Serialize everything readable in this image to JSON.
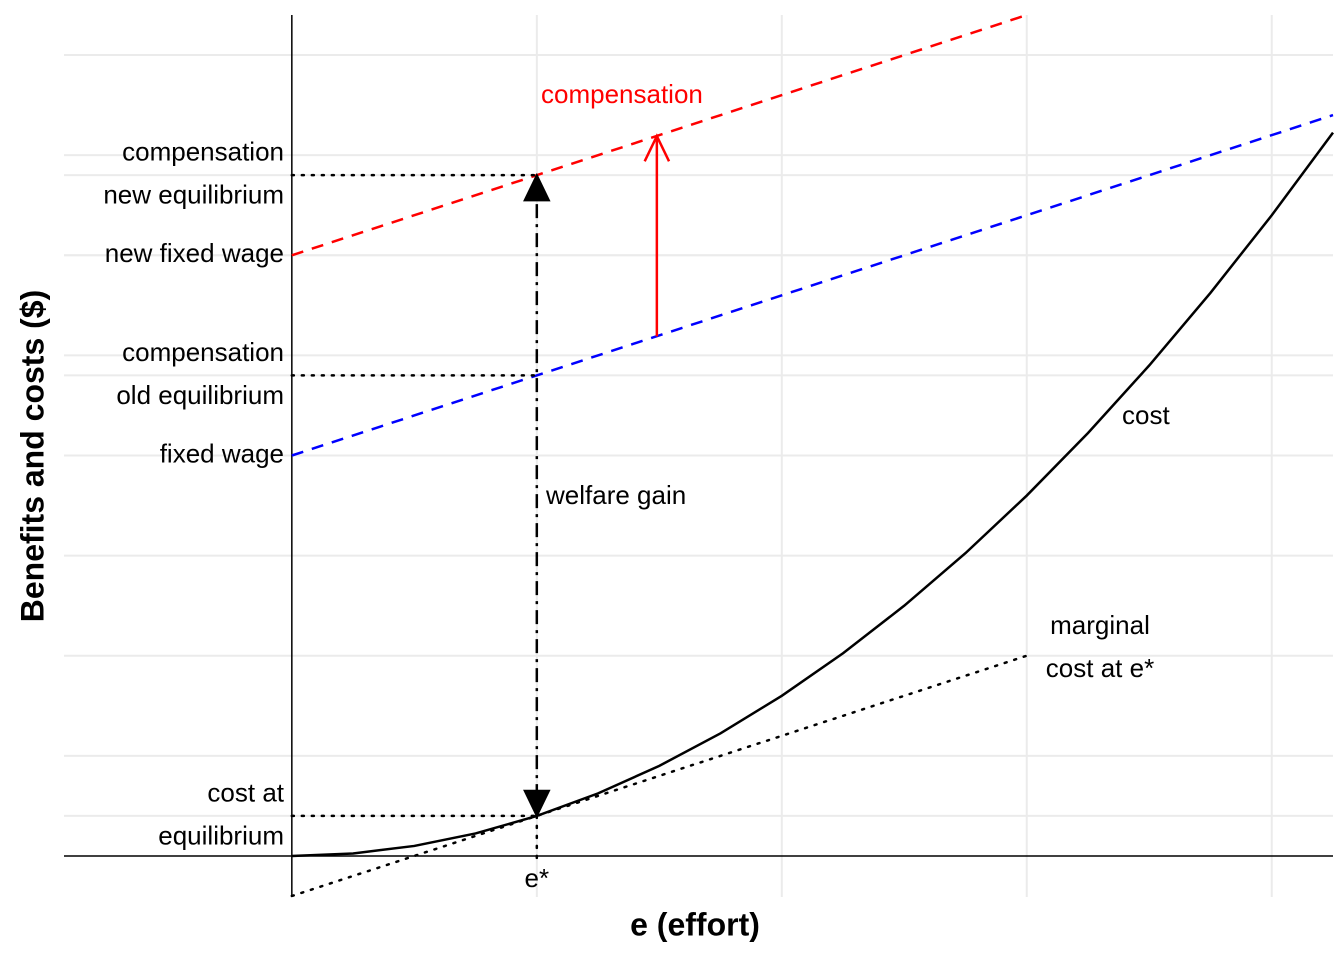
{
  "chart_data": {
    "type": "line",
    "x_label": "e (effort)",
    "y_label": "Benefits and costs ($)",
    "xlim": [
      -0.93,
      4.25
    ],
    "ylim": [
      -0.41,
      8.4
    ],
    "xticks": [
      {
        "value": 1,
        "label": [
          "e*"
        ]
      }
    ],
    "yticks": [
      {
        "value": 0.4,
        "label": [
          "cost at",
          "equilibrium"
        ]
      },
      {
        "value": 4,
        "label": [
          "fixed wage"
        ]
      },
      {
        "value": 4.8,
        "label": [
          "compensation",
          "old equilibrium"
        ]
      },
      {
        "value": 6,
        "label": [
          "new fixed wage"
        ]
      },
      {
        "value": 6.8,
        "label": [
          "compensation",
          "new equilibrium"
        ]
      }
    ],
    "grid_x": [
      1,
      2,
      3,
      4
    ],
    "grid_y": [
      1,
      2,
      3,
      4,
      5,
      6,
      7,
      8
    ],
    "series": [
      {
        "color": "#000000",
        "style": "solid",
        "x": [
          0,
          0.25,
          0.5,
          0.75,
          1,
          1.25,
          1.5,
          1.75,
          2,
          2.25,
          2.5,
          2.75,
          3,
          3.25,
          3.5,
          3.75,
          4,
          4.25
        ],
        "values": [
          0,
          0.025,
          0.1,
          0.225,
          0.4,
          0.625,
          0.9,
          1.225,
          1.6,
          2.025,
          2.5,
          3.025,
          3.6,
          4.225,
          4.9,
          5.625,
          6.4,
          7.225
        ]
      },
      {
        "color": "#000000",
        "style": "dotted",
        "x": [
          0,
          3
        ],
        "values": [
          -0.4,
          2.0
        ]
      },
      {
        "color": "#0000ff",
        "style": "dashed",
        "x": [
          0,
          4.25
        ],
        "values": [
          4,
          7.4
        ]
      },
      {
        "color": "#ff0000",
        "style": "dashed",
        "x": [
          0,
          3
        ],
        "values": [
          6,
          8.4
        ]
      },
      {
        "color": "#000000",
        "style": "dotted",
        "x": [
          0,
          1
        ],
        "values": [
          6.8,
          6.8
        ]
      },
      {
        "color": "#000000",
        "style": "dotted",
        "x": [
          0,
          1
        ],
        "values": [
          4.8,
          4.8
        ]
      },
      {
        "color": "#000000",
        "style": "dotted",
        "x": [
          0,
          1
        ],
        "values": [
          0.4,
          0.4
        ]
      },
      {
        "color": "#000000",
        "style": "dotted",
        "x": [
          1,
          1
        ],
        "values": [
          0.4,
          -0.05
        ]
      },
      {
        "color": "#ff0000",
        "style": "solid",
        "arrow": "open-end",
        "x": [
          1.49,
          1.49
        ],
        "values": [
          5.19,
          7.19
        ]
      },
      {
        "color": "#000000",
        "style": "dashdot",
        "arrow": "both",
        "x": [
          1,
          1
        ],
        "values": [
          6.8,
          0.4
        ]
      }
    ],
    "annotations": [
      {
        "text": [
          "compensation"
        ],
        "color": "#ff0000"
      },
      {
        "text": [
          "welfare gain"
        ],
        "color": "#000000"
      },
      {
        "text": [
          "cost"
        ],
        "color": "#000000"
      },
      {
        "text": [
          "marginal",
          "cost at e*"
        ],
        "color": "#000000"
      }
    ]
  }
}
